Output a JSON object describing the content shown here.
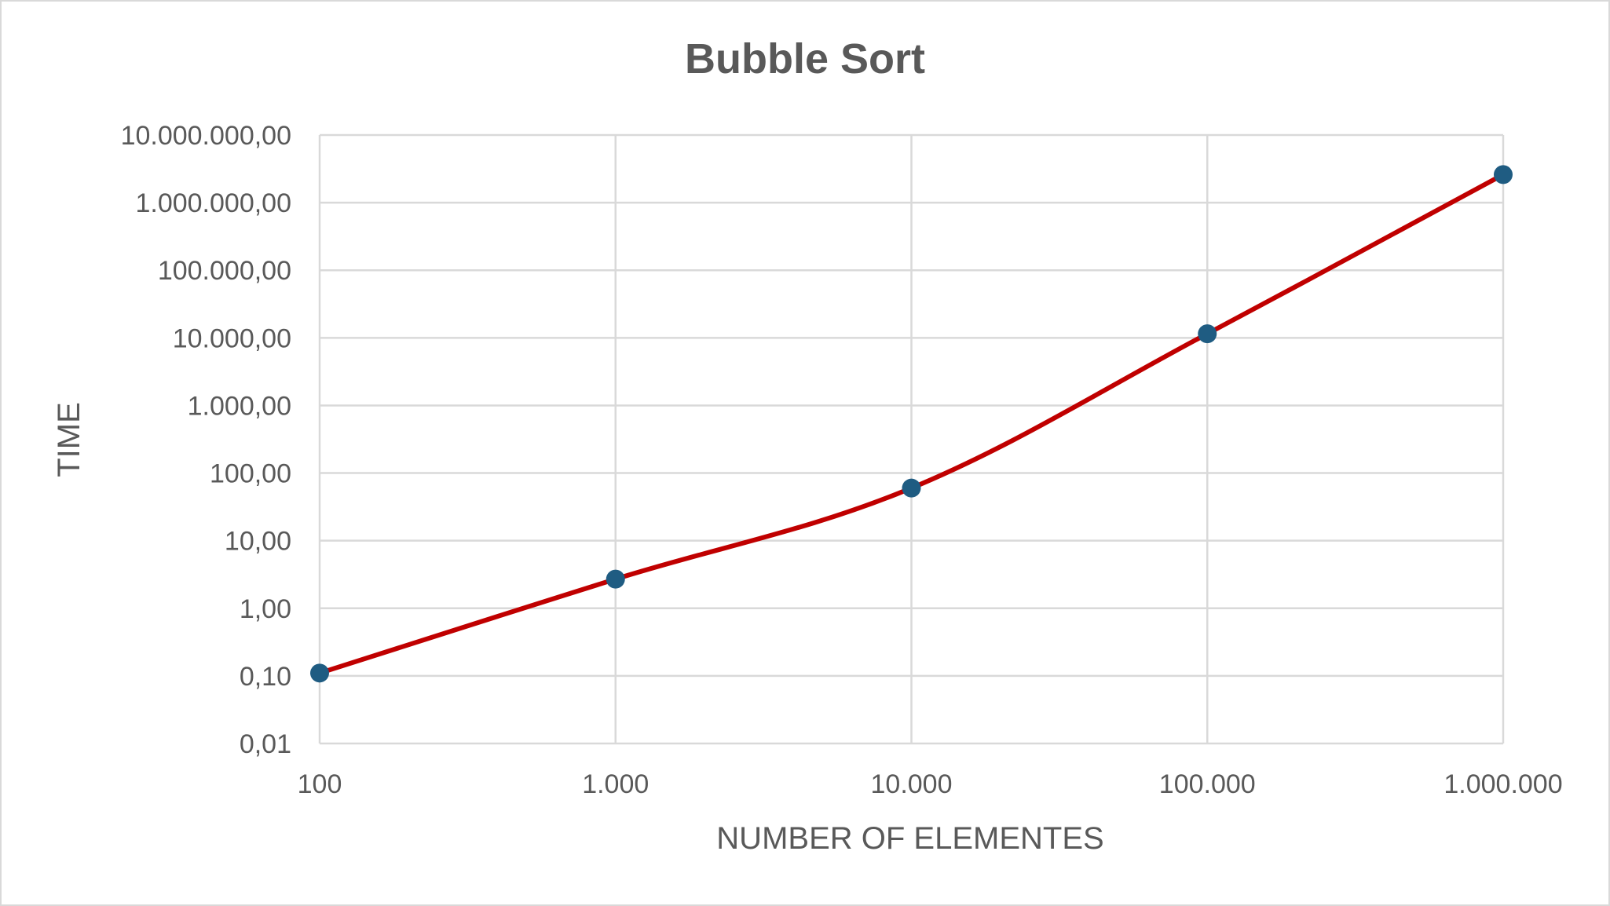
{
  "chart_data": {
    "type": "line",
    "title": "Bubble Sort",
    "xlabel": "NUMBER OF ELEMENTES",
    "ylabel": "TIME",
    "x_scale": "log",
    "y_scale": "log",
    "x": [
      100,
      1000,
      10000,
      100000,
      1000000
    ],
    "x_tick_values": [
      100,
      1000,
      10000,
      100000,
      1000000
    ],
    "x_tick_labels": [
      "100",
      "1.000",
      "10.000",
      "100.000",
      "1.000.000"
    ],
    "y_tick_values": [
      0.01,
      0.1,
      1,
      10,
      100,
      1000,
      10000,
      100000,
      1000000,
      10000000
    ],
    "y_tick_labels": [
      "0,01",
      "0,10",
      "1,00",
      "10,00",
      "100,00",
      "1.000,00",
      "10.000,00",
      "100.000,00",
      "1.000.000,00",
      "10.000.000,00"
    ],
    "xlim": [
      100,
      1000000
    ],
    "ylim": [
      0.01,
      10000000
    ],
    "grid": true,
    "smooth": true,
    "series": [
      {
        "values": [
          0.11,
          2.7,
          60,
          11500,
          2600000
        ],
        "line_color": "#c00000",
        "marker_color": "#1f5c82"
      }
    ]
  }
}
